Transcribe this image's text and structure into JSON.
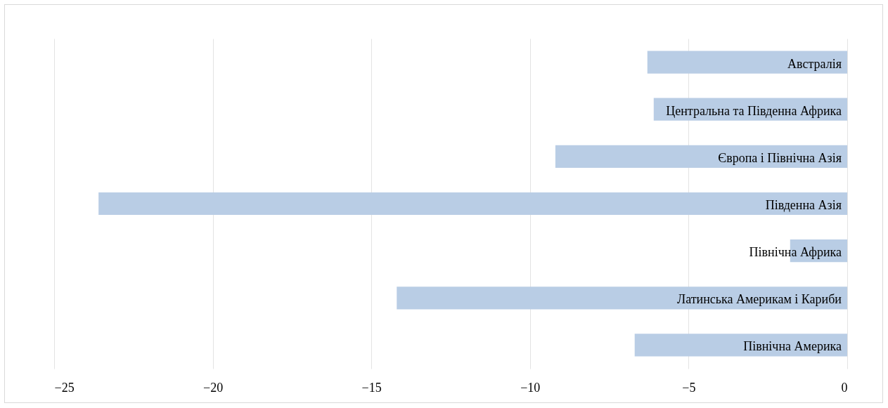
{
  "chart_data": {
    "type": "bar",
    "orientation": "horizontal",
    "categories": [
      "Австралія",
      "Центральна та Південна Африка",
      "Європа і Північна Азія",
      "Південна Азія",
      "Північна Африка",
      "Латинська Америкам і Кариби",
      "Північна Америка"
    ],
    "values": [
      -6.3,
      -6.1,
      -9.2,
      -23.6,
      -1.8,
      -14.2,
      -6.7
    ],
    "color": "#b9cde5",
    "xlim": [
      -25,
      0
    ],
    "xticks": [
      -25,
      -20,
      -15,
      -10,
      -5,
      0
    ],
    "grid": "x"
  }
}
